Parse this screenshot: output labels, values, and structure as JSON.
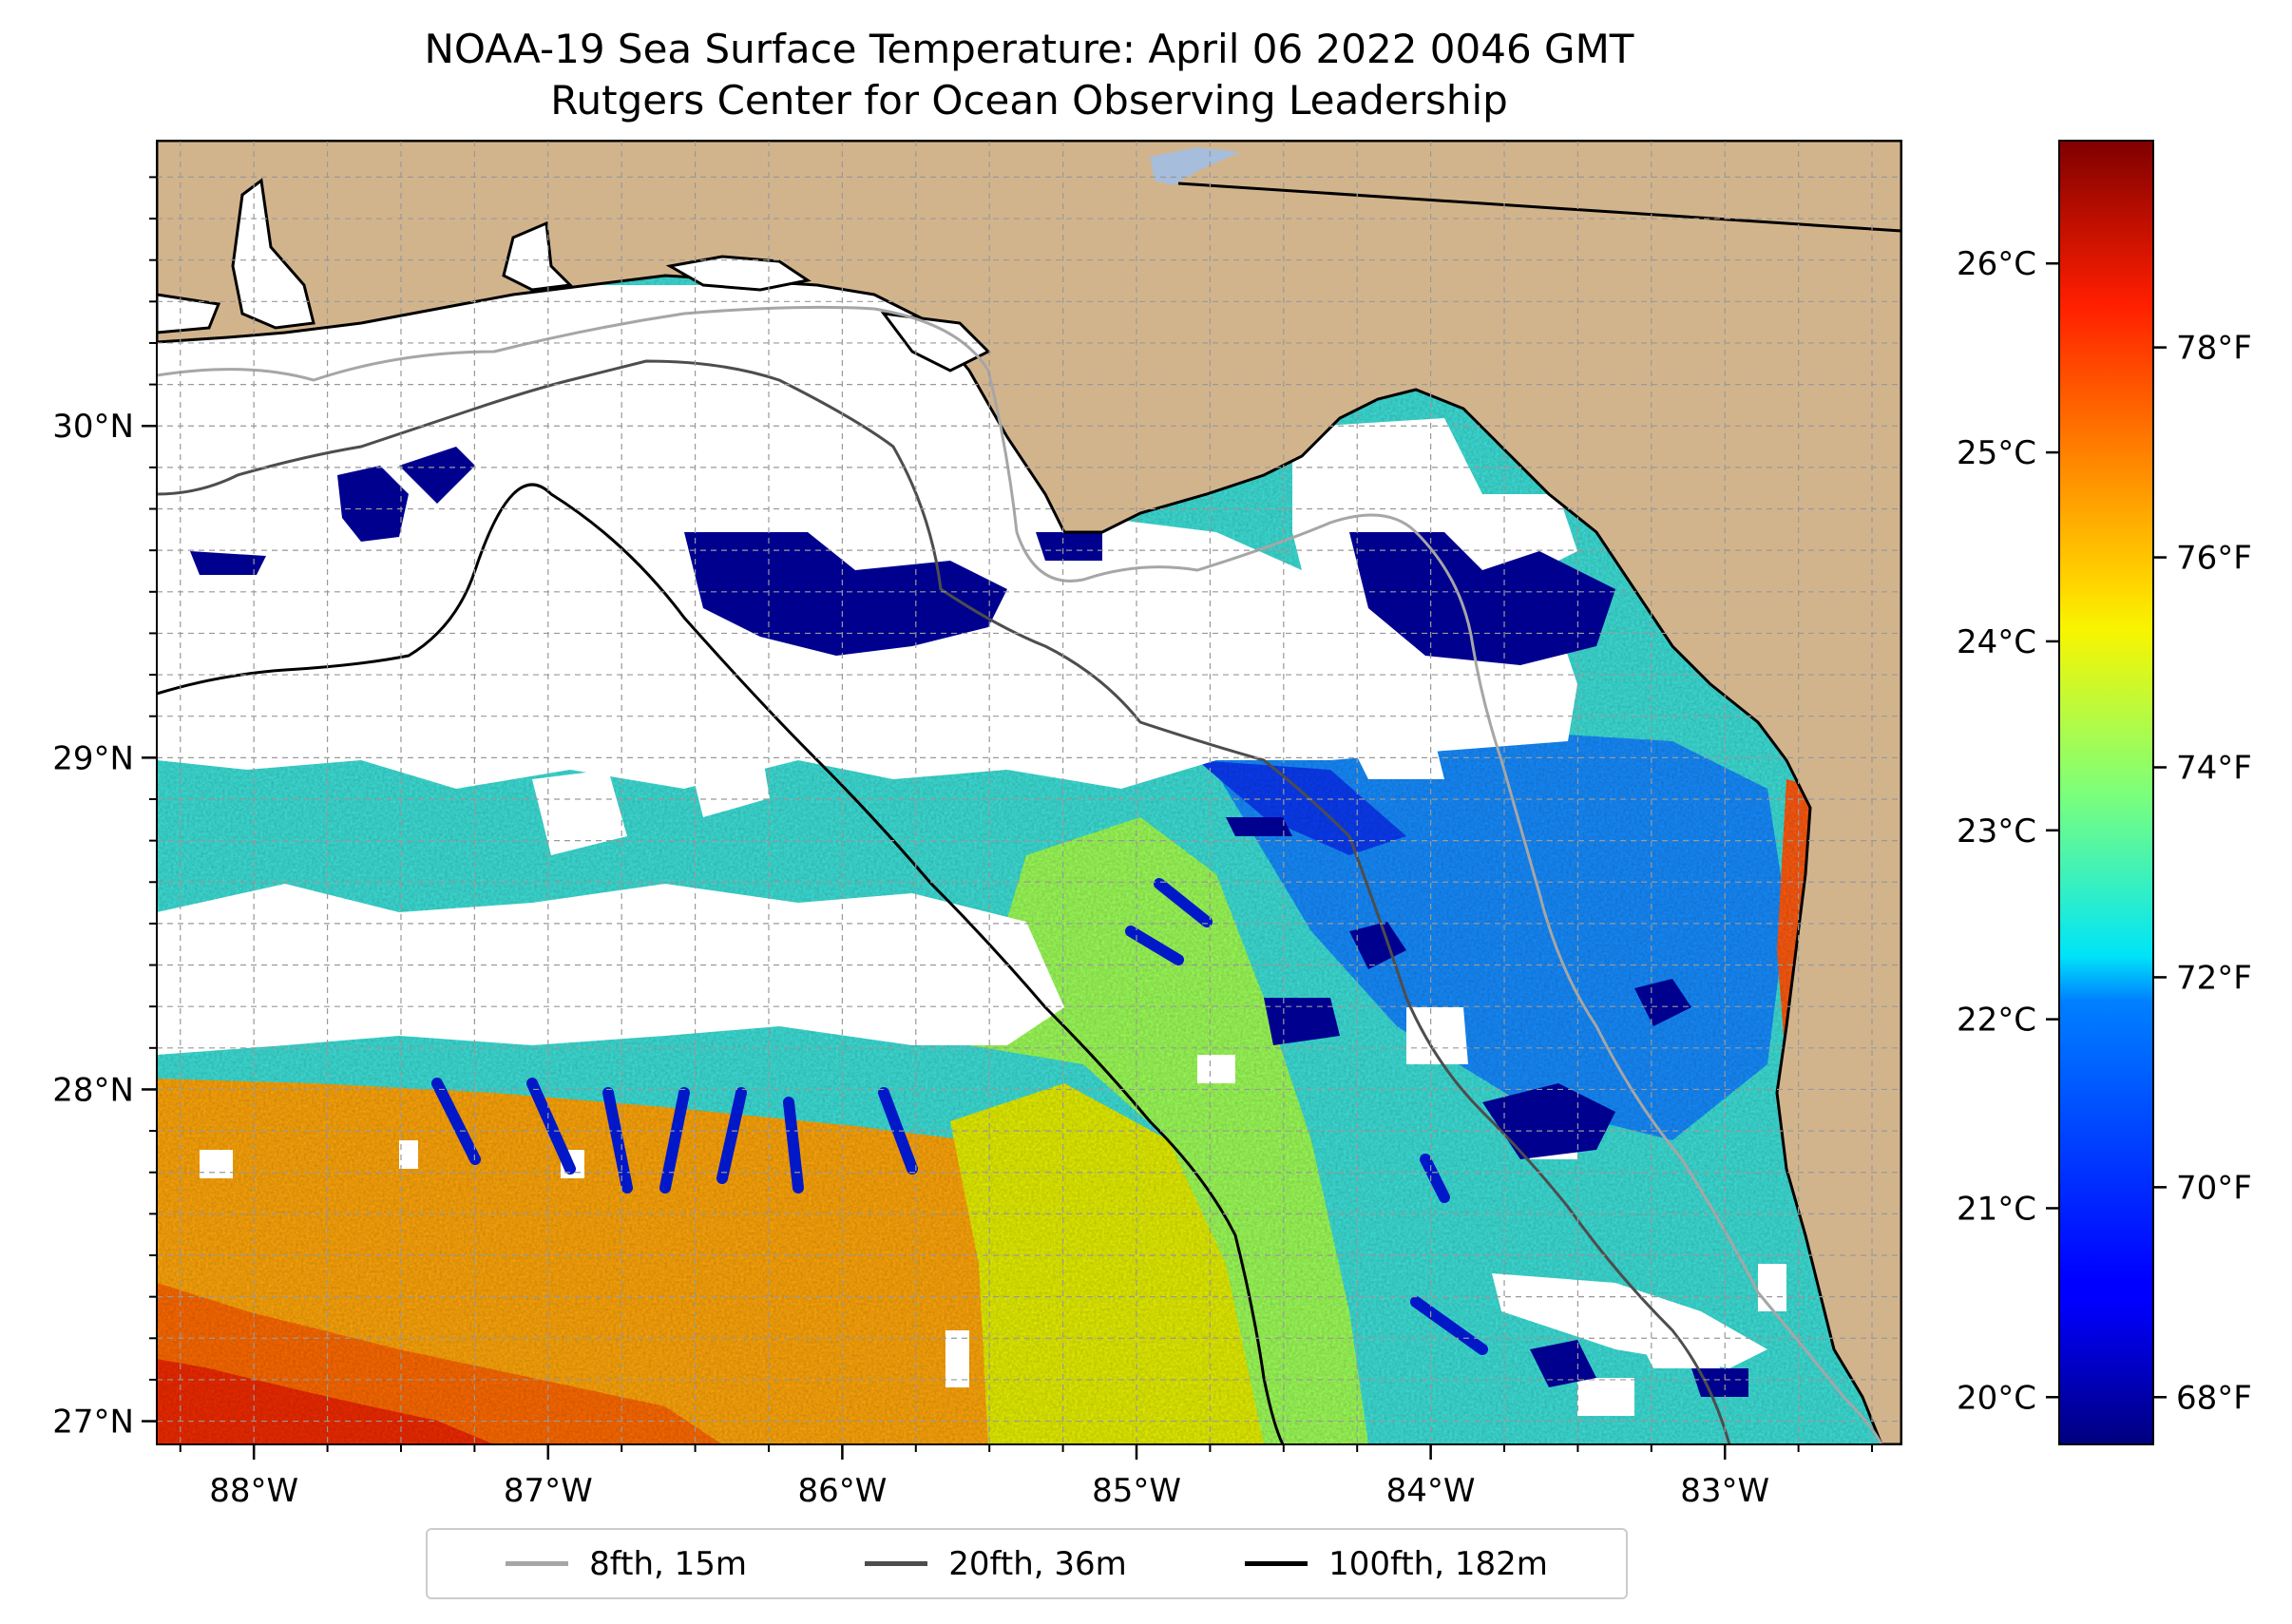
{
  "title": {
    "line1": "NOAA-19 Sea Surface Temperature: April 06 2022 0046 GMT",
    "line2": "Rutgers Center for Ocean Observing Leadership"
  },
  "map": {
    "lon_range": [
      -88.33,
      -82.4
    ],
    "lat_range": [
      26.93,
      30.86
    ],
    "lon_ticks": [
      {
        "value": -88,
        "label": "88°W"
      },
      {
        "value": -87,
        "label": "87°W"
      },
      {
        "value": -86,
        "label": "86°W"
      },
      {
        "value": -85,
        "label": "85°W"
      },
      {
        "value": -84,
        "label": "84°W"
      },
      {
        "value": -83,
        "label": "83°W"
      }
    ],
    "lat_ticks": [
      {
        "value": 27,
        "label": "27°N"
      },
      {
        "value": 28,
        "label": "28°N"
      },
      {
        "value": 29,
        "label": "29°N"
      },
      {
        "value": 30,
        "label": "30°N"
      }
    ],
    "gridlines": true,
    "land_color": "#d2b48c",
    "lake_color": "#a6bddb",
    "cloud_mask_color": "#ffffff"
  },
  "colorbar": {
    "colormap": "jet",
    "celsius_range": [
      19.75,
      26.65
    ],
    "celsius_ticks": [
      {
        "value": 20,
        "label": "20°C"
      },
      {
        "value": 21,
        "label": "21°C"
      },
      {
        "value": 22,
        "label": "22°C"
      },
      {
        "value": 23,
        "label": "23°C"
      },
      {
        "value": 24,
        "label": "24°C"
      },
      {
        "value": 25,
        "label": "25°C"
      },
      {
        "value": 26,
        "label": "26°C"
      }
    ],
    "fahrenheit_ticks": [
      {
        "value": 68,
        "label": "68°F"
      },
      {
        "value": 70,
        "label": "70°F"
      },
      {
        "value": 72,
        "label": "72°F"
      },
      {
        "value": 74,
        "label": "74°F"
      },
      {
        "value": 76,
        "label": "76°F"
      },
      {
        "value": 78,
        "label": "78°F"
      }
    ]
  },
  "legend": {
    "items": [
      {
        "label": "8fth, 15m",
        "color": "#a6a6a6"
      },
      {
        "label": "20fth, 36m",
        "color": "#4d4d4d"
      },
      {
        "label": "100fth, 182m",
        "color": "#000000"
      }
    ]
  }
}
